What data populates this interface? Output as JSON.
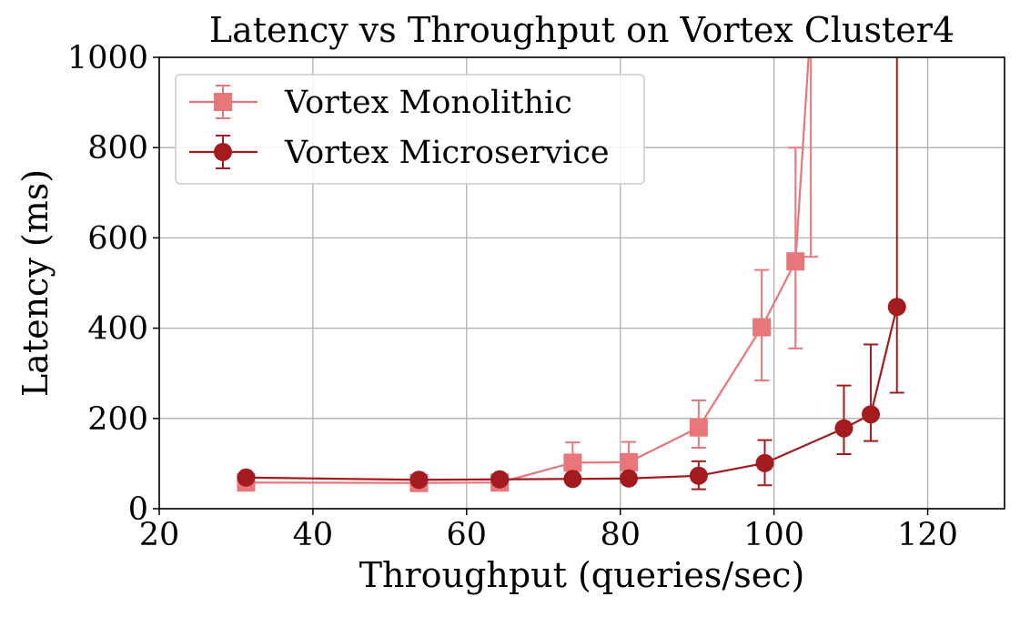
{
  "chart_data": {
    "type": "line",
    "title": "Latency vs Throughput on Vortex Cluster4",
    "xlabel": "Throughput (queries/sec)",
    "ylabel": "Latency (ms)",
    "xlim": [
      20,
      130
    ],
    "ylim": [
      0,
      1000
    ],
    "xticks": [
      20,
      40,
      60,
      80,
      100,
      120
    ],
    "yticks": [
      0,
      200,
      400,
      600,
      800,
      1000
    ],
    "grid": true,
    "legend_position": "top-left",
    "series": [
      {
        "name": "Vortex Monolithic",
        "marker": "square",
        "color": "#E8767A",
        "points": [
          {
            "x": 31.3,
            "y": 58,
            "err_low": 4,
            "err_high": 4
          },
          {
            "x": 53.8,
            "y": 57,
            "err_low": 4,
            "err_high": 4
          },
          {
            "x": 64.3,
            "y": 58,
            "err_low": 4,
            "err_high": 4
          },
          {
            "x": 73.8,
            "y": 102,
            "err_low": 45,
            "err_high": 45
          },
          {
            "x": 81.1,
            "y": 103,
            "err_low": 45,
            "err_high": 45
          },
          {
            "x": 90.2,
            "y": 180,
            "err_low": 45,
            "err_high": 60
          },
          {
            "x": 98.4,
            "y": 402,
            "err_low": 118,
            "err_high": 127
          },
          {
            "x": 102.8,
            "y": 548,
            "err_low": 193,
            "err_high": 252
          },
          {
            "x": 104.8,
            "y": 1080,
            "err_low": 522,
            "err_high": 500
          }
        ]
      },
      {
        "name": "Vortex Microservice",
        "marker": "circle",
        "color": "#A31B1F",
        "points": [
          {
            "x": 31.3,
            "y": 69,
            "err_low": 4,
            "err_high": 4
          },
          {
            "x": 53.8,
            "y": 64,
            "err_low": 4,
            "err_high": 4
          },
          {
            "x": 64.3,
            "y": 65,
            "err_low": 4,
            "err_high": 4
          },
          {
            "x": 73.8,
            "y": 66,
            "err_low": 4,
            "err_high": 4
          },
          {
            "x": 81.1,
            "y": 67,
            "err_low": 4,
            "err_high": 4
          },
          {
            "x": 90.2,
            "y": 73,
            "err_low": 30,
            "err_high": 32
          },
          {
            "x": 98.8,
            "y": 101,
            "err_low": 49,
            "err_high": 51
          },
          {
            "x": 109.1,
            "y": 178,
            "err_low": 57,
            "err_high": 95
          },
          {
            "x": 112.6,
            "y": 209,
            "err_low": 59,
            "err_high": 155
          },
          {
            "x": 116.0,
            "y": 447,
            "err_low": 190,
            "err_high": 800
          }
        ]
      }
    ]
  }
}
